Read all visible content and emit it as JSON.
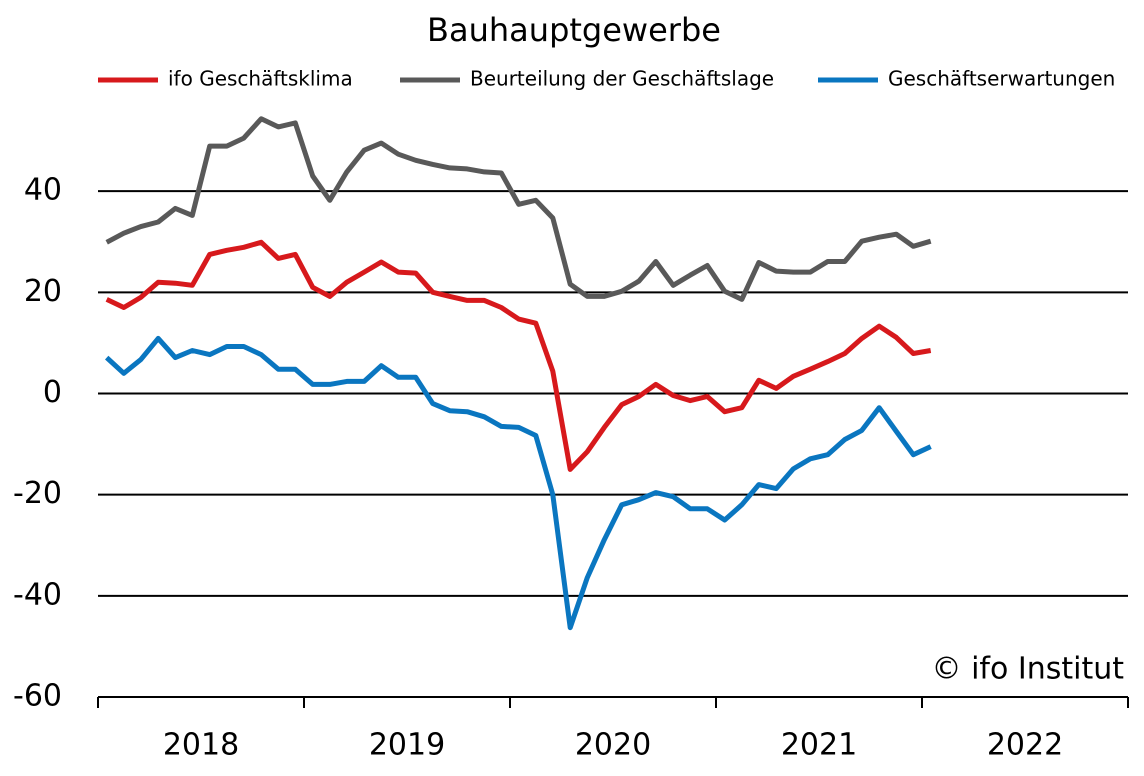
{
  "chart_data": {
    "type": "line",
    "title": "Bauhauptgewerbe",
    "annotation": "© ifo Institut",
    "x": [
      2018.042,
      2018.125,
      2018.208,
      2018.292,
      2018.375,
      2018.458,
      2018.542,
      2018.625,
      2018.708,
      2018.792,
      2018.875,
      2018.958,
      2019.042,
      2019.125,
      2019.208,
      2019.292,
      2019.375,
      2019.458,
      2019.542,
      2019.625,
      2019.708,
      2019.792,
      2019.875,
      2019.958,
      2020.042,
      2020.125,
      2020.208,
      2020.292,
      2020.375,
      2020.458,
      2020.542,
      2020.625,
      2020.708,
      2020.792,
      2020.875,
      2020.958,
      2021.042,
      2021.125,
      2021.208,
      2021.292,
      2021.375,
      2021.458,
      2021.542,
      2021.625,
      2021.708,
      2021.792,
      2021.875,
      2021.958,
      2022.042
    ],
    "series": [
      {
        "name": "ifo Geschäftsklima",
        "color": "#d7191c",
        "values": [
          18.6,
          17,
          19,
          22,
          21.8,
          21.4,
          27.5,
          28.3,
          28.9,
          29.9,
          26.7,
          27.5,
          21,
          19.2,
          22,
          24,
          26,
          24,
          23.8,
          20,
          19.2,
          18.4,
          18.4,
          17,
          14.7,
          13.9,
          4.4,
          -15,
          -11.5,
          -6.7,
          -2.2,
          -0.6,
          1.8,
          -0.4,
          -1.4,
          -0.6,
          -3.6,
          -2.8,
          2.6,
          1,
          3.4,
          4.8,
          6.3,
          7.9,
          10.9,
          13.3,
          11.1,
          7.9,
          8.5
        ]
      },
      {
        "name": "Beurteilung der Geschäftslage",
        "color": "#595959",
        "values": [
          29.9,
          31.7,
          33,
          33.9,
          36.6,
          35.2,
          48.9,
          48.9,
          50.5,
          54.3,
          52.7,
          53.5,
          43,
          38.2,
          43.8,
          48.1,
          49.5,
          47.3,
          46.1,
          45.3,
          44.6,
          44.4,
          43.8,
          43.6,
          37.4,
          38.2,
          34.7,
          21.6,
          19.2,
          19.2,
          20.2,
          22.2,
          26.1,
          21.4,
          23.4,
          25.3,
          20.2,
          18.6,
          25.9,
          24.2,
          24,
          24,
          26.1,
          26.1,
          30.1,
          30.9,
          31.5,
          29.1,
          30.1
        ]
      },
      {
        "name": "Geschäftserwartungen",
        "color": "#0a76c0",
        "values": [
          7.1,
          4,
          6.7,
          10.9,
          7.1,
          8.5,
          7.7,
          9.3,
          9.3,
          7.7,
          4.8,
          4.8,
          1.8,
          1.8,
          2.4,
          2.4,
          5.5,
          3.2,
          3.2,
          -2,
          -3.4,
          -3.6,
          -4.6,
          -6.5,
          -6.7,
          -8.3,
          -20,
          -46.3,
          -36.4,
          -28.9,
          -22,
          -21,
          -19.6,
          -20.4,
          -22.8,
          -22.8,
          -25,
          -22,
          -18,
          -18.8,
          -14.9,
          -12.9,
          -12.1,
          -9.1,
          -7.3,
          -2.8,
          -7.5,
          -12.1,
          -10.5
        ]
      }
    ],
    "xlim": [
      2018,
      2023
    ],
    "xticks": [
      2018,
      2019,
      2020,
      2021,
      2022,
      2023
    ],
    "xlabels": [
      {
        "value": 2018.5,
        "label": "2018"
      },
      {
        "value": 2019.5,
        "label": "2019"
      },
      {
        "value": 2020.5,
        "label": "2020"
      },
      {
        "value": 2021.5,
        "label": "2021"
      },
      {
        "value": 2022.5,
        "label": "2022"
      }
    ],
    "ylim": [
      -60,
      60
    ],
    "yticks": [
      -60,
      -40,
      -20,
      0,
      20,
      40
    ],
    "grid": true,
    "legend": "top"
  }
}
